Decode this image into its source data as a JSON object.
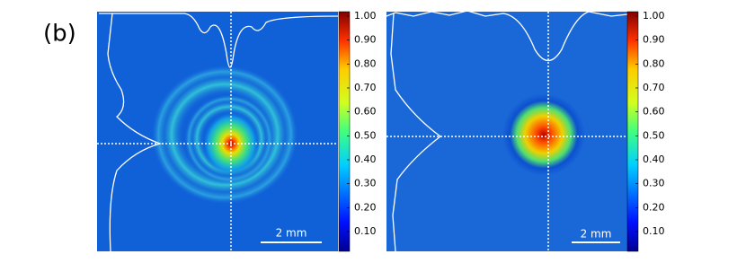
{
  "label": "(b)",
  "panels": [
    {
      "scale_bar": "2 mm",
      "colorbar": {
        "ticks": [
          {
            "value": 1.0,
            "label": "1.00"
          },
          {
            "value": 0.9,
            "label": "0.90"
          },
          {
            "value": 0.8,
            "label": "0.80"
          },
          {
            "value": 0.7,
            "label": "0.70"
          },
          {
            "value": 0.6,
            "label": "0.60"
          },
          {
            "value": 0.5,
            "label": "0.50"
          },
          {
            "value": 0.4,
            "label": "0.40"
          },
          {
            "value": 0.3,
            "label": "0.30"
          },
          {
            "value": 0.2,
            "label": "0.20"
          },
          {
            "value": 0.1,
            "label": "0.10"
          }
        ]
      }
    },
    {
      "scale_bar": "2 mm",
      "colorbar": {
        "ticks": [
          {
            "value": 1.0,
            "label": "1.00"
          },
          {
            "value": 0.9,
            "label": "0.90"
          },
          {
            "value": 0.8,
            "label": "0.80"
          },
          {
            "value": 0.7,
            "label": "0.70"
          },
          {
            "value": 0.6,
            "label": "0.60"
          },
          {
            "value": 0.5,
            "label": "0.50"
          },
          {
            "value": 0.4,
            "label": "0.40"
          },
          {
            "value": 0.3,
            "label": "0.30"
          },
          {
            "value": 0.2,
            "label": "0.20"
          },
          {
            "value": 0.1,
            "label": "0.10"
          }
        ]
      }
    }
  ]
}
